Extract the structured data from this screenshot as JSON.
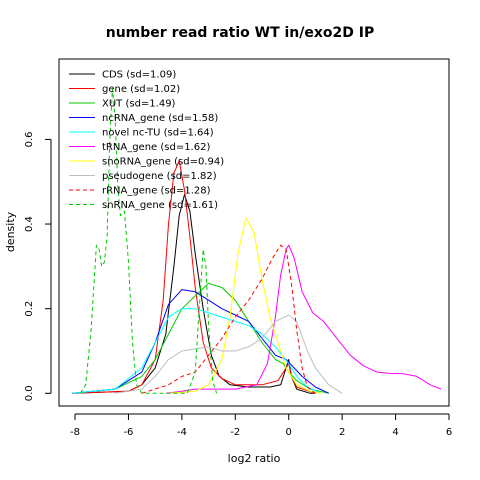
{
  "chart_data": {
    "type": "line",
    "title": "number read ratio WT in/exo2D IP",
    "xlabel": "log2 ratio",
    "ylabel": "density",
    "xlim": [
      -8.6,
      6.0
    ],
    "ylim": [
      -0.03,
      0.79
    ],
    "x_ticks": [
      -8,
      -6,
      -4,
      -2,
      0,
      2,
      4,
      6
    ],
    "x_tick_labels": [
      "-8",
      "-6",
      "-4",
      "-2",
      "0",
      "2",
      "4",
      "6"
    ],
    "y_ticks": [
      0.0,
      0.2,
      0.4,
      0.6
    ],
    "y_tick_labels": [
      "0.0",
      "0.2",
      "0.4",
      "0.6"
    ],
    "grid": false,
    "legend_position": "top-left",
    "series": [
      {
        "name": "CDS (sd=1.09)",
        "color": "#000000",
        "dash": "solid",
        "points": [
          [
            -8.1,
            0.0
          ],
          [
            -6.0,
            0.005
          ],
          [
            -5.5,
            0.02
          ],
          [
            -5.0,
            0.06
          ],
          [
            -4.6,
            0.14
          ],
          [
            -4.3,
            0.3
          ],
          [
            -4.1,
            0.42
          ],
          [
            -3.9,
            0.47
          ],
          [
            -3.7,
            0.43
          ],
          [
            -3.5,
            0.33
          ],
          [
            -3.2,
            0.2
          ],
          [
            -2.9,
            0.09
          ],
          [
            -2.6,
            0.04
          ],
          [
            -2.2,
            0.02
          ],
          [
            -1.5,
            0.015
          ],
          [
            -0.7,
            0.015
          ],
          [
            -0.3,
            0.02
          ],
          [
            -0.1,
            0.06
          ],
          [
            0.0,
            0.08
          ],
          [
            0.1,
            0.04
          ],
          [
            0.3,
            0.01
          ],
          [
            0.8,
            0.0
          ],
          [
            1.0,
            0.0
          ]
        ]
      },
      {
        "name": "gene (sd=1.02)",
        "color": "#ff0000",
        "dash": "solid",
        "points": [
          [
            -8.1,
            0.0
          ],
          [
            -6.0,
            0.005
          ],
          [
            -5.5,
            0.02
          ],
          [
            -5.0,
            0.08
          ],
          [
            -4.7,
            0.22
          ],
          [
            -4.5,
            0.4
          ],
          [
            -4.3,
            0.52
          ],
          [
            -4.1,
            0.55
          ],
          [
            -3.9,
            0.48
          ],
          [
            -3.7,
            0.37
          ],
          [
            -3.5,
            0.25
          ],
          [
            -3.2,
            0.12
          ],
          [
            -2.9,
            0.06
          ],
          [
            -2.5,
            0.035
          ],
          [
            -2.0,
            0.02
          ],
          [
            -1.0,
            0.02
          ],
          [
            -0.4,
            0.03
          ],
          [
            -0.1,
            0.06
          ],
          [
            0.0,
            0.07
          ],
          [
            0.1,
            0.04
          ],
          [
            0.3,
            0.015
          ],
          [
            1.0,
            0.0
          ]
        ]
      },
      {
        "name": "XUT (sd=1.49)",
        "color": "#00cc00",
        "dash": "solid",
        "points": [
          [
            -8.1,
            0.0
          ],
          [
            -6.5,
            0.01
          ],
          [
            -5.5,
            0.04
          ],
          [
            -5.0,
            0.08
          ],
          [
            -4.5,
            0.14
          ],
          [
            -4.0,
            0.2
          ],
          [
            -3.5,
            0.23
          ],
          [
            -3.0,
            0.26
          ],
          [
            -2.5,
            0.25
          ],
          [
            -2.0,
            0.22
          ],
          [
            -1.5,
            0.17
          ],
          [
            -1.0,
            0.12
          ],
          [
            -0.5,
            0.08
          ],
          [
            -0.2,
            0.07
          ],
          [
            0.0,
            0.05
          ],
          [
            0.3,
            0.03
          ],
          [
            0.8,
            0.01
          ],
          [
            1.5,
            0.0
          ]
        ]
      },
      {
        "name": "ncRNA_gene (sd=1.58)",
        "color": "#0000ff",
        "dash": "solid",
        "points": [
          [
            -8.1,
            0.0
          ],
          [
            -6.5,
            0.01
          ],
          [
            -5.5,
            0.05
          ],
          [
            -5.0,
            0.12
          ],
          [
            -4.5,
            0.21
          ],
          [
            -4.0,
            0.245
          ],
          [
            -3.5,
            0.24
          ],
          [
            -3.0,
            0.22
          ],
          [
            -2.5,
            0.2
          ],
          [
            -2.0,
            0.185
          ],
          [
            -1.5,
            0.17
          ],
          [
            -1.0,
            0.13
          ],
          [
            -0.5,
            0.09
          ],
          [
            -0.1,
            0.08
          ],
          [
            0.2,
            0.06
          ],
          [
            0.5,
            0.04
          ],
          [
            1.0,
            0.015
          ],
          [
            1.5,
            0.0
          ]
        ]
      },
      {
        "name": "novel nc-TU (sd=1.64)",
        "color": "#00ffff",
        "dash": "solid",
        "points": [
          [
            -8.1,
            0.0
          ],
          [
            -6.5,
            0.01
          ],
          [
            -5.5,
            0.06
          ],
          [
            -5.0,
            0.12
          ],
          [
            -4.5,
            0.18
          ],
          [
            -4.0,
            0.2
          ],
          [
            -3.5,
            0.2
          ],
          [
            -3.0,
            0.19
          ],
          [
            -2.5,
            0.18
          ],
          [
            -2.0,
            0.17
          ],
          [
            -1.5,
            0.16
          ],
          [
            -1.0,
            0.14
          ],
          [
            -0.5,
            0.11
          ],
          [
            0.0,
            0.07
          ],
          [
            0.3,
            0.04
          ],
          [
            0.7,
            0.015
          ],
          [
            1.2,
            0.0
          ]
        ]
      },
      {
        "name": "tRNA_gene (sd=1.62)",
        "color": "#ff00ff",
        "dash": "solid",
        "points": [
          [
            -4.6,
            0.0
          ],
          [
            -4.0,
            0.005
          ],
          [
            -3.5,
            0.01
          ],
          [
            -3.0,
            0.01
          ],
          [
            -2.0,
            0.01
          ],
          [
            -1.2,
            0.02
          ],
          [
            -0.8,
            0.07
          ],
          [
            -0.5,
            0.18
          ],
          [
            -0.3,
            0.28
          ],
          [
            -0.1,
            0.34
          ],
          [
            0.0,
            0.35
          ],
          [
            0.2,
            0.32
          ],
          [
            0.5,
            0.24
          ],
          [
            0.9,
            0.19
          ],
          [
            1.3,
            0.17
          ],
          [
            1.8,
            0.13
          ],
          [
            2.3,
            0.09
          ],
          [
            2.8,
            0.065
          ],
          [
            3.3,
            0.05
          ],
          [
            3.8,
            0.047
          ],
          [
            4.3,
            0.046
          ],
          [
            4.8,
            0.04
          ],
          [
            5.3,
            0.02
          ],
          [
            5.7,
            0.01
          ]
        ]
      },
      {
        "name": "snoRNA_gene (sd=0.94)",
        "color": "#ffff00",
        "dash": "solid",
        "points": [
          [
            -4.5,
            0.0
          ],
          [
            -3.5,
            0.005
          ],
          [
            -3.0,
            0.02
          ],
          [
            -2.5,
            0.08
          ],
          [
            -2.2,
            0.18
          ],
          [
            -1.9,
            0.33
          ],
          [
            -1.6,
            0.415
          ],
          [
            -1.3,
            0.38
          ],
          [
            -1.0,
            0.27
          ],
          [
            -0.7,
            0.18
          ],
          [
            -0.4,
            0.12
          ],
          [
            -0.1,
            0.06
          ],
          [
            0.3,
            0.02
          ],
          [
            0.8,
            0.005
          ],
          [
            1.2,
            0.0
          ]
        ]
      },
      {
        "name": "pseudogene (sd=1.82)",
        "color": "#bebebe",
        "dash": "solid",
        "points": [
          [
            -6.5,
            0.0
          ],
          [
            -5.5,
            0.01
          ],
          [
            -5.0,
            0.04
          ],
          [
            -4.5,
            0.08
          ],
          [
            -4.0,
            0.1
          ],
          [
            -3.5,
            0.105
          ],
          [
            -3.0,
            0.11
          ],
          [
            -2.5,
            0.1
          ],
          [
            -2.0,
            0.1
          ],
          [
            -1.5,
            0.11
          ],
          [
            -1.0,
            0.13
          ],
          [
            -0.5,
            0.17
          ],
          [
            0.0,
            0.185
          ],
          [
            0.3,
            0.17
          ],
          [
            0.7,
            0.1
          ],
          [
            1.0,
            0.06
          ],
          [
            1.5,
            0.02
          ],
          [
            2.0,
            0.0
          ]
        ]
      },
      {
        "name": "rRNA_gene (sd=1.28)",
        "color": "#ff0000",
        "dash": "dashed",
        "points": [
          [
            -5.5,
            0.0
          ],
          [
            -4.5,
            0.02
          ],
          [
            -4.0,
            0.04
          ],
          [
            -3.5,
            0.05
          ],
          [
            -3.0,
            0.09
          ],
          [
            -2.5,
            0.13
          ],
          [
            -2.0,
            0.18
          ],
          [
            -1.5,
            0.22
          ],
          [
            -1.0,
            0.27
          ],
          [
            -0.6,
            0.32
          ],
          [
            -0.3,
            0.35
          ],
          [
            -0.1,
            0.34
          ],
          [
            0.1,
            0.26
          ],
          [
            0.3,
            0.15
          ],
          [
            0.5,
            0.06
          ],
          [
            0.7,
            0.015
          ],
          [
            1.0,
            0.0
          ]
        ]
      },
      {
        "name": "snRNA_gene (sd=1.61)",
        "color": "#00cc00",
        "dash": "dashed",
        "points": [
          [
            -7.8,
            0.0
          ],
          [
            -7.6,
            0.02
          ],
          [
            -7.4,
            0.15
          ],
          [
            -7.2,
            0.35
          ],
          [
            -7.1,
            0.34
          ],
          [
            -7.0,
            0.3
          ],
          [
            -6.9,
            0.31
          ],
          [
            -6.8,
            0.37
          ],
          [
            -6.7,
            0.6
          ],
          [
            -6.6,
            0.72
          ],
          [
            -6.5,
            0.65
          ],
          [
            -6.4,
            0.49
          ],
          [
            -6.3,
            0.42
          ],
          [
            -6.15,
            0.43
          ],
          [
            -6.0,
            0.31
          ],
          [
            -5.85,
            0.12
          ],
          [
            -5.7,
            0.02
          ],
          [
            -5.5,
            0.0
          ],
          [
            -3.8,
            0.0
          ],
          [
            -3.5,
            0.05
          ],
          [
            -3.35,
            0.2
          ],
          [
            -3.2,
            0.34
          ],
          [
            -3.1,
            0.3
          ],
          [
            -3.0,
            0.16
          ],
          [
            -2.85,
            0.03
          ],
          [
            -2.7,
            0.0
          ]
        ]
      }
    ]
  }
}
